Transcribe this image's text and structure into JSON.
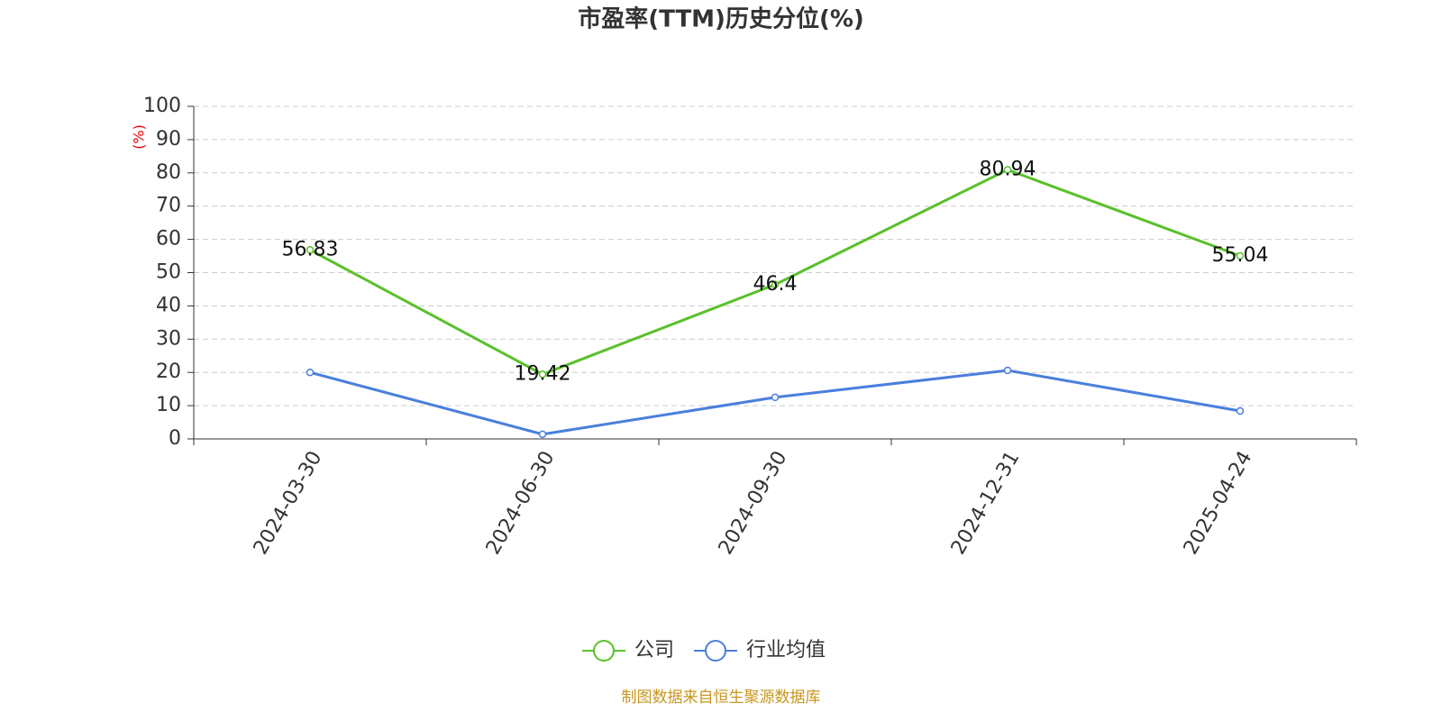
{
  "chart_data": {
    "type": "line",
    "title": "市盈率(TTM)历史分位(%)",
    "y_label": "(%)",
    "categories": [
      "2024-03-30",
      "2024-06-30",
      "2024-09-30",
      "2024-12-31",
      "2025-04-24"
    ],
    "series": [
      {
        "name": "公司",
        "color": "#5ac02a",
        "values": [
          56.83,
          19.42,
          46.4,
          80.94,
          55.04
        ],
        "show_labels": true
      },
      {
        "name": "行业均值",
        "color": "#4a7fdc",
        "values": [
          20,
          1.4,
          12.5,
          20.6,
          8.4
        ],
        "show_labels": false
      }
    ],
    "ylim": [
      0,
      100
    ],
    "yticks": [
      0,
      10,
      20,
      30,
      40,
      50,
      60,
      70,
      80,
      90,
      100
    ],
    "grid": true,
    "source": "制图数据来自恒生聚源数据库"
  }
}
